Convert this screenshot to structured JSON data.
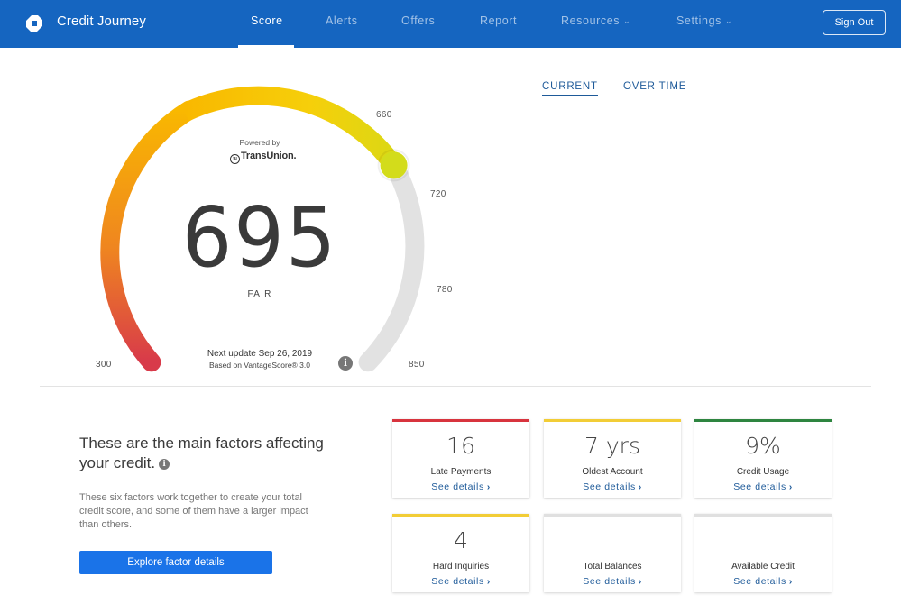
{
  "header": {
    "brand": "Credit Journey",
    "nav": [
      {
        "label": "Score"
      },
      {
        "label": "Alerts"
      },
      {
        "label": "Offers"
      },
      {
        "label": "Report"
      },
      {
        "label": "Resources"
      },
      {
        "label": "Settings"
      }
    ],
    "sign_out": "Sign Out",
    "bar_color": "#1565c0"
  },
  "gauge": {
    "powered_by": "Powered by",
    "provider": "TransUnion.",
    "score": "695",
    "rating": "FAIR",
    "ticks": {
      "t300": "300",
      "t660": "660",
      "t720": "720",
      "t780": "780",
      "t850": "850"
    },
    "next_update": "Next update Sep 26, 2019",
    "based_on": "Based on VantageScore® 3.0",
    "info_icon": "i",
    "score_min": 300,
    "score_max": 850,
    "score_value": 695,
    "colors": {
      "low": "#d32f2f",
      "mid": "#f9c10a",
      "high": "#d4dd1c",
      "track": "#e2e2e2"
    }
  },
  "view_tabs": {
    "current": "CURRENT",
    "over_time": "OVER TIME"
  },
  "factors": {
    "heading": "These are the main factors affecting your credit.",
    "heading_info": "i",
    "description": "These six factors work together to create your total credit score, and some of them have a larger impact than others.",
    "explore_button": "Explore factor details",
    "see_details": "See details",
    "cards": [
      {
        "value": "16",
        "label": "Late Payments",
        "color": "#d8343e"
      },
      {
        "value": "7 yrs",
        "label": "Oldest Account",
        "color": "#f2cd36"
      },
      {
        "value": "9%",
        "label": "Credit Usage",
        "color": "#2e8540"
      },
      {
        "value": "4",
        "label": "Hard Inquiries",
        "color": "#f2cd36"
      },
      {
        "value": "",
        "label": "Total Balances",
        "color": "#e0e0e0"
      },
      {
        "value": "",
        "label": "Available Credit",
        "color": "#e0e0e0"
      }
    ]
  }
}
